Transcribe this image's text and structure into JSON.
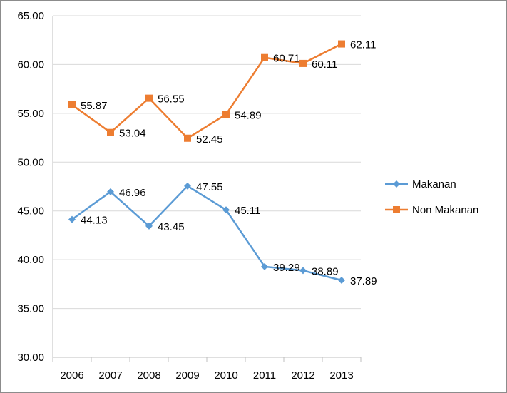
{
  "chart_data": {
    "type": "line",
    "title": "",
    "xlabel": "",
    "ylabel": "",
    "categories": [
      "2006",
      "2007",
      "2008",
      "2009",
      "2010",
      "2011",
      "2012",
      "2013"
    ],
    "ylim": [
      30,
      65
    ],
    "yticks": [
      "30.00",
      "35.00",
      "40.00",
      "45.00",
      "50.00",
      "55.00",
      "60.00",
      "65.00"
    ],
    "grid": true,
    "legend": "right",
    "series": [
      {
        "name": "Makanan",
        "color": "#5b9bd5",
        "marker": "diamond",
        "values": [
          44.13,
          46.96,
          43.45,
          47.55,
          45.11,
          39.29,
          38.89,
          37.89
        ],
        "labels": [
          "44.13",
          "46.96",
          "43.45",
          "47.55",
          "45.11",
          "39.29",
          "38.89",
          "37.89"
        ]
      },
      {
        "name": "Non Makanan",
        "color": "#ed7d31",
        "marker": "square",
        "values": [
          55.87,
          53.04,
          56.55,
          52.45,
          54.89,
          60.71,
          60.11,
          62.11
        ],
        "labels": [
          "55.87",
          "53.04",
          "56.55",
          "52.45",
          "54.89",
          "60.71",
          "60.11",
          "62.11"
        ]
      }
    ]
  }
}
